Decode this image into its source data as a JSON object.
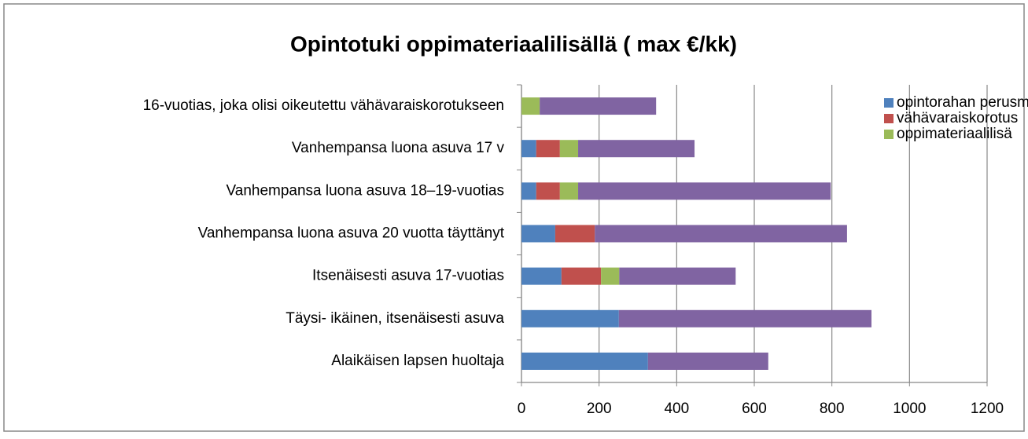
{
  "chart_data": {
    "type": "stacked-bar-horizontal",
    "title": "Opintotuki oppimateriaalilisällä ( max €/kk)",
    "categories": [
      "16-vuotias, joka olisi oikeutettu vähävaraiskorotukseen",
      "Vanhempansa luona asuva 17 v",
      "Vanhempansa luona asuva 18–19-vuotias",
      "Vanhempansa luona asuva 20 vuotta täyttänyt",
      "Itsenäisesti asuva 17-vuotias",
      "Täysi- ikäinen, itsenäisesti  asuva",
      "Alaikäisen lapsen huoltaja"
    ],
    "series": [
      {
        "name": "opintorahan perusmäärä",
        "color": "#4f81bd",
        "values": [
          0,
          38,
          38,
          87,
          103,
          251,
          326
        ]
      },
      {
        "name": "vähävaraiskorotus",
        "color": "#c0504d",
        "values": [
          0,
          61,
          61,
          102,
          102,
          0,
          0
        ]
      },
      {
        "name": "oppimateriaalilisä",
        "color": "#9bbb59",
        "values": [
          47,
          47,
          47,
          0,
          47,
          0,
          0
        ]
      },
      {
        "color": "#8064a2",
        "values": [
          300,
          300,
          651,
          650,
          300,
          651,
          310
        ]
      }
    ],
    "xlim": [
      0,
      1200
    ],
    "xticks": [
      0,
      200,
      400,
      600,
      800,
      1000,
      1200
    ],
    "grid": true,
    "legend": "top-right"
  }
}
